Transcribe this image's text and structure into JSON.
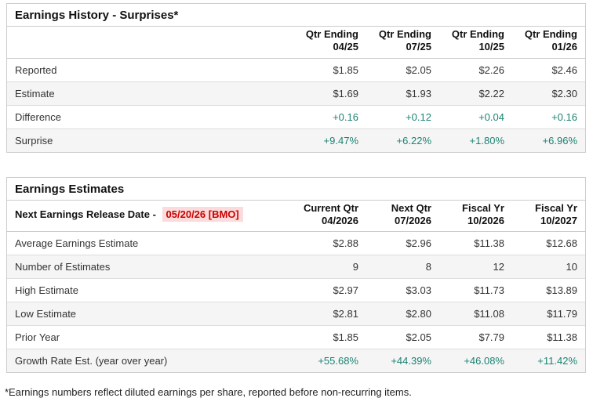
{
  "colors": {
    "positive_text": "#1d8373",
    "alert_text": "#cc0000",
    "alert_background": "#fbdbdb",
    "card_border": "#cccccc",
    "row_divider": "#dddddd",
    "row_stripe": "#f5f5f5"
  },
  "earnings_history": {
    "title": "Earnings History - Surprises*",
    "columns": [
      {
        "label": "Qtr Ending",
        "sub": "04/25"
      },
      {
        "label": "Qtr Ending",
        "sub": "07/25"
      },
      {
        "label": "Qtr Ending",
        "sub": "10/25"
      },
      {
        "label": "Qtr Ending",
        "sub": "01/26"
      }
    ],
    "rows": [
      {
        "label": "Reported",
        "values": [
          "$1.85",
          "$2.05",
          "$2.26",
          "$2.46"
        ],
        "positive": false
      },
      {
        "label": "Estimate",
        "values": [
          "$1.69",
          "$1.93",
          "$2.22",
          "$2.30"
        ],
        "positive": false
      },
      {
        "label": "Difference",
        "values": [
          "+0.16",
          "+0.12",
          "+0.04",
          "+0.16"
        ],
        "positive": true
      },
      {
        "label": "Surprise",
        "values": [
          "+9.47%",
          "+6.22%",
          "+1.80%",
          "+6.96%"
        ],
        "positive": true
      }
    ]
  },
  "earnings_estimates": {
    "title": "Earnings Estimates",
    "release_date_label": "Next Earnings Release Date -",
    "release_date_value": "05/20/26 [BMO]",
    "columns": [
      {
        "label": "Current Qtr",
        "sub": "04/2026"
      },
      {
        "label": "Next Qtr",
        "sub": "07/2026"
      },
      {
        "label": "Fiscal Yr",
        "sub": "10/2026"
      },
      {
        "label": "Fiscal Yr",
        "sub": "10/2027"
      }
    ],
    "rows": [
      {
        "label": "Average Earnings Estimate",
        "values": [
          "$2.88",
          "$2.96",
          "$11.38",
          "$12.68"
        ],
        "positive": false
      },
      {
        "label": "Number of Estimates",
        "values": [
          "9",
          "8",
          "12",
          "10"
        ],
        "positive": false
      },
      {
        "label": "High Estimate",
        "values": [
          "$2.97",
          "$3.03",
          "$11.73",
          "$13.89"
        ],
        "positive": false
      },
      {
        "label": "Low Estimate",
        "values": [
          "$2.81",
          "$2.80",
          "$11.08",
          "$11.79"
        ],
        "positive": false
      },
      {
        "label": "Prior Year",
        "values": [
          "$1.85",
          "$2.05",
          "$7.79",
          "$11.38"
        ],
        "positive": false
      },
      {
        "label": "Growth Rate Est. (year over year)",
        "values": [
          "+55.68%",
          "+44.39%",
          "+46.08%",
          "+11.42%"
        ],
        "positive": true
      }
    ]
  },
  "footnote": "*Earnings numbers reflect diluted earnings per share, reported before non-recurring items."
}
